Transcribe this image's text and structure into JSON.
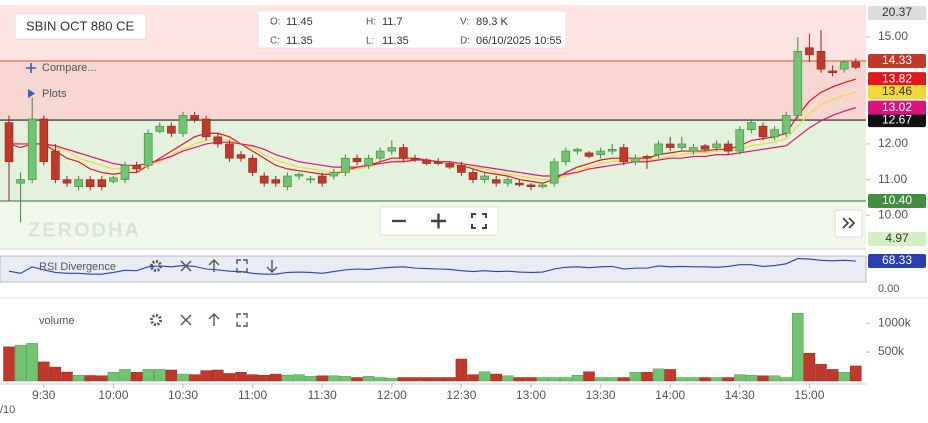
{
  "ui": {
    "symbol": "SBIN OCT 880 CE",
    "quote": [
      {
        "key": "O:",
        "value": "11.45"
      },
      {
        "key": "H:",
        "value": "11.7"
      },
      {
        "key": "V:",
        "value": "89.3 K"
      },
      {
        "key": "C:",
        "value": "11.35"
      },
      {
        "key": "L:",
        "value": "11.35"
      },
      {
        "key": "D:",
        "value": "06/10/2025 10:55"
      }
    ],
    "compare": "Compare...",
    "plots": "Plots",
    "watermark": "ZERODHA",
    "date_fragment": "/10",
    "rsi_axis": "0.00"
  },
  "chart_data": [
    {
      "type": "candlestick",
      "categories": [
        null,
        null,
        null,
        "9:30",
        null,
        null,
        null,
        null,
        null,
        "10:00",
        null,
        null,
        null,
        null,
        null,
        "10:30",
        null,
        null,
        null,
        null,
        null,
        "11:00",
        null,
        null,
        null,
        null,
        null,
        "11:30",
        null,
        null,
        null,
        null,
        null,
        "12:00",
        null,
        null,
        null,
        null,
        null,
        "12:30",
        null,
        null,
        null,
        null,
        null,
        "13:00",
        null,
        null,
        null,
        null,
        null,
        "13:30",
        null,
        null,
        null,
        null,
        null,
        "14:00",
        null,
        null,
        null,
        null,
        null,
        "14:30",
        null,
        null,
        null,
        null,
        null,
        "15:00",
        null,
        null,
        null,
        null
      ],
      "open": [
        12.6,
        10.9,
        11.0,
        12.7,
        11.8,
        11.0,
        10.8,
        11.0,
        11.0,
        10.95,
        11.0,
        11.4,
        11.4,
        12.35,
        12.5,
        12.3,
        12.8,
        12.7,
        12.2,
        12.0,
        11.7,
        11.6,
        11.1,
        11.0,
        10.8,
        11.1,
        11.0,
        11.1,
        11.1,
        11.2,
        11.6,
        11.4,
        11.6,
        11.8,
        11.9,
        11.6,
        11.55,
        11.5,
        11.45,
        11.4,
        11.2,
        11.0,
        11.0,
        10.9,
        10.9,
        10.85,
        10.8,
        10.9,
        11.5,
        11.8,
        11.75,
        11.7,
        11.8,
        11.9,
        11.5,
        11.65,
        11.7,
        12.0,
        11.9,
        11.8,
        11.95,
        11.9,
        12.0,
        11.8,
        12.4,
        12.5,
        12.2,
        12.3,
        12.8,
        14.7,
        14.6,
        14.05,
        14.1,
        14.3
      ],
      "high": [
        12.8,
        11.2,
        13.3,
        12.8,
        12.0,
        11.1,
        11.1,
        11.1,
        11.1,
        11.1,
        11.5,
        11.5,
        12.4,
        12.6,
        12.6,
        12.9,
        12.9,
        12.8,
        12.3,
        12.1,
        11.8,
        11.7,
        11.2,
        11.1,
        11.2,
        11.2,
        11.1,
        11.2,
        11.3,
        11.7,
        11.7,
        11.7,
        11.9,
        12.1,
        12.0,
        11.7,
        11.6,
        11.6,
        11.5,
        11.5,
        11.3,
        11.2,
        11.1,
        11.1,
        11.0,
        10.9,
        10.9,
        11.6,
        11.9,
        11.9,
        11.8,
        11.9,
        12.0,
        12.0,
        11.7,
        11.7,
        12.1,
        12.2,
        12.2,
        12.0,
        12.0,
        12.1,
        12.1,
        12.5,
        12.7,
        12.6,
        12.5,
        12.9,
        15.0,
        15.1,
        15.2,
        14.2,
        14.35,
        14.4
      ],
      "low": [
        10.4,
        9.8,
        10.9,
        11.4,
        10.9,
        10.8,
        10.7,
        10.7,
        10.7,
        10.9,
        10.9,
        11.2,
        11.3,
        12.3,
        12.2,
        12.2,
        12.6,
        12.1,
        11.9,
        11.5,
        11.5,
        11.1,
        10.8,
        10.8,
        10.7,
        11.0,
        10.9,
        10.8,
        11.0,
        11.1,
        11.4,
        11.3,
        11.5,
        11.7,
        11.5,
        11.5,
        11.4,
        11.4,
        11.3,
        11.1,
        10.9,
        10.9,
        10.8,
        10.8,
        10.8,
        10.7,
        10.75,
        10.8,
        11.4,
        11.7,
        11.6,
        11.6,
        11.7,
        11.4,
        11.4,
        11.3,
        11.6,
        11.8,
        11.8,
        11.7,
        11.8,
        11.8,
        11.7,
        11.7,
        12.3,
        12.1,
        12.1,
        12.2,
        12.7,
        14.3,
        14.0,
        13.9,
        14.0,
        14.1
      ],
      "close": [
        11.5,
        11.0,
        12.7,
        11.5,
        11.0,
        10.9,
        11.0,
        10.8,
        10.8,
        11.05,
        11.4,
        11.3,
        12.3,
        12.5,
        12.3,
        12.8,
        12.7,
        12.2,
        12.0,
        11.6,
        11.6,
        11.2,
        10.9,
        10.9,
        11.1,
        11.15,
        11.02,
        10.9,
        11.2,
        11.6,
        11.5,
        11.6,
        11.8,
        11.9,
        11.6,
        11.55,
        11.45,
        11.45,
        11.35,
        11.2,
        11.0,
        11.1,
        10.9,
        11.0,
        10.85,
        10.8,
        10.85,
        11.5,
        11.8,
        11.85,
        11.65,
        11.8,
        11.85,
        11.5,
        11.6,
        11.6,
        12.0,
        11.9,
        12.0,
        11.9,
        11.85,
        12.0,
        11.8,
        12.4,
        12.6,
        12.2,
        12.4,
        12.8,
        14.6,
        14.5,
        14.1,
        14.0,
        14.3,
        14.15
      ],
      "up_color": "#72c472",
      "down_color": "#c0392b",
      "lines": [
        {
          "color": "#e3161d",
          "values": [
            12.0,
            11.9,
            12.0,
            12.0,
            11.8,
            11.6,
            11.5,
            11.3,
            11.2,
            11.15,
            11.2,
            11.2,
            11.4,
            11.6,
            11.8,
            12.0,
            12.2,
            12.3,
            12.3,
            12.2,
            12.0,
            11.8,
            11.6,
            11.4,
            11.3,
            11.25,
            11.2,
            11.15,
            11.15,
            11.25,
            11.35,
            11.4,
            11.5,
            11.6,
            11.6,
            11.6,
            11.55,
            11.5,
            11.45,
            11.4,
            11.3,
            11.2,
            11.15,
            11.1,
            11.0,
            10.95,
            10.9,
            11.0,
            11.2,
            11.35,
            11.45,
            11.55,
            11.6,
            11.6,
            11.6,
            11.6,
            11.7,
            11.75,
            11.8,
            11.8,
            11.8,
            11.85,
            11.85,
            11.95,
            12.1,
            12.15,
            12.2,
            12.3,
            12.8,
            13.2,
            13.45,
            13.6,
            13.72,
            13.82
          ]
        },
        {
          "color": "#f2d93b",
          "values": [
            12.1,
            12.0,
            12.0,
            12.0,
            11.9,
            11.8,
            11.6,
            11.5,
            11.4,
            11.3,
            11.3,
            11.3,
            11.4,
            11.5,
            11.7,
            11.85,
            12.0,
            12.1,
            12.15,
            12.1,
            12.0,
            11.9,
            11.7,
            11.55,
            11.45,
            11.35,
            11.3,
            11.25,
            11.2,
            11.25,
            11.3,
            11.35,
            11.45,
            11.5,
            11.55,
            11.55,
            11.55,
            11.5,
            11.45,
            11.4,
            11.35,
            11.3,
            11.2,
            11.15,
            11.1,
            11.05,
            11.0,
            11.0,
            11.1,
            11.25,
            11.35,
            11.45,
            11.5,
            11.55,
            11.55,
            11.55,
            11.6,
            11.65,
            11.7,
            11.75,
            11.75,
            11.8,
            11.8,
            11.85,
            11.95,
            12.0,
            12.05,
            12.15,
            12.5,
            12.85,
            13.1,
            13.25,
            13.37,
            13.46
          ]
        },
        {
          "color": "#d8157c",
          "values": [
            12.0,
            12.0,
            12.0,
            12.0,
            11.95,
            11.85,
            11.75,
            11.65,
            11.55,
            11.45,
            11.4,
            11.4,
            11.45,
            11.55,
            11.65,
            11.8,
            11.9,
            12.0,
            12.05,
            12.05,
            12.0,
            11.95,
            11.85,
            11.7,
            11.6,
            11.5,
            11.45,
            11.4,
            11.35,
            11.35,
            11.35,
            11.4,
            11.45,
            11.5,
            11.5,
            11.55,
            11.55,
            11.5,
            11.5,
            11.45,
            11.4,
            11.35,
            11.3,
            11.25,
            11.2,
            11.15,
            11.1,
            11.1,
            11.15,
            11.2,
            11.3,
            11.35,
            11.4,
            11.45,
            11.5,
            11.5,
            11.55,
            11.6,
            11.6,
            11.65,
            11.65,
            11.7,
            11.7,
            11.75,
            11.8,
            11.85,
            11.9,
            11.95,
            12.2,
            12.45,
            12.65,
            12.8,
            12.92,
            13.02
          ]
        }
      ],
      "levels": [
        {
          "value": 20.37,
          "label": "20.37",
          "color": "#dddddd",
          "text_color": "#333",
          "band_color": "#fde3e1"
        },
        {
          "value": 14.33,
          "label": "14.33",
          "color": "#c0392b",
          "text_color": "#fff",
          "line_color": "#e0603a",
          "band_color": "#f8d6d1"
        },
        {
          "value": 12.67,
          "label": "12.67",
          "color": "#111111",
          "text_color": "#fff",
          "line_color": "#222",
          "band_color": "#e4f1dc"
        },
        {
          "value": 10.4,
          "label": "10.40",
          "color": "#3f8f3f",
          "text_color": "#fff",
          "line_color": "#5c8a5c",
          "band_color": "#f0f8ea"
        },
        {
          "value": 4.97,
          "label": "4.97",
          "color": "#d4efc4",
          "text_color": "#333"
        }
      ],
      "ylim": [
        9.08,
        15.9
      ],
      "yticks": [
        {
          "value": 10,
          "label": "10.00"
        },
        {
          "value": 11,
          "label": "11.00"
        },
        {
          "value": 12,
          "label": "12.00"
        },
        {
          "value": 15,
          "label": "15.00"
        }
      ]
    },
    {
      "type": "line",
      "title": "RSI Divergence",
      "color": "#2a3fb0",
      "values": [
        45,
        40,
        55,
        48,
        42,
        40,
        40,
        38,
        38,
        42,
        47,
        46,
        55,
        57,
        55,
        58,
        56,
        50,
        48,
        45,
        44,
        40,
        38,
        38,
        42,
        43,
        42,
        40,
        44,
        48,
        50,
        49,
        52,
        54,
        55,
        52,
        51,
        50,
        49,
        46,
        44,
        46,
        44,
        45,
        43,
        42,
        43,
        50,
        54,
        55,
        53,
        55,
        56,
        50,
        52,
        52,
        57,
        55,
        56,
        55,
        55,
        54,
        56,
        60,
        60,
        56,
        58,
        62,
        74,
        73,
        70,
        69,
        70,
        68.33
      ],
      "ylim": [
        20,
        80
      ]
    },
    {
      "type": "bar",
      "title": "volume",
      "values": [
        590000,
        620000,
        650000,
        330000,
        240000,
        155000,
        100000,
        95000,
        90000,
        150000,
        200000,
        150000,
        200000,
        200000,
        190000,
        120000,
        110000,
        180000,
        190000,
        130000,
        150000,
        110000,
        100000,
        120000,
        100000,
        110000,
        80000,
        90000,
        90000,
        80000,
        60000,
        80000,
        60000,
        50000,
        60000,
        60000,
        60000,
        60000,
        60000,
        380000,
        110000,
        160000,
        120000,
        90000,
        60000,
        60000,
        60000,
        60000,
        60000,
        100000,
        160000,
        60000,
        60000,
        60000,
        150000,
        150000,
        210000,
        200000,
        60000,
        60000,
        60000,
        60000,
        60000,
        110000,
        100000,
        90000,
        90000,
        60000,
        1170000,
        480000,
        290000,
        200000,
        150000,
        260000
      ],
      "ylim": [
        0,
        1400000
      ],
      "yticks": [
        {
          "value": 500000,
          "label": "500k"
        },
        {
          "value": 1000000,
          "label": "1000k"
        }
      ]
    }
  ]
}
